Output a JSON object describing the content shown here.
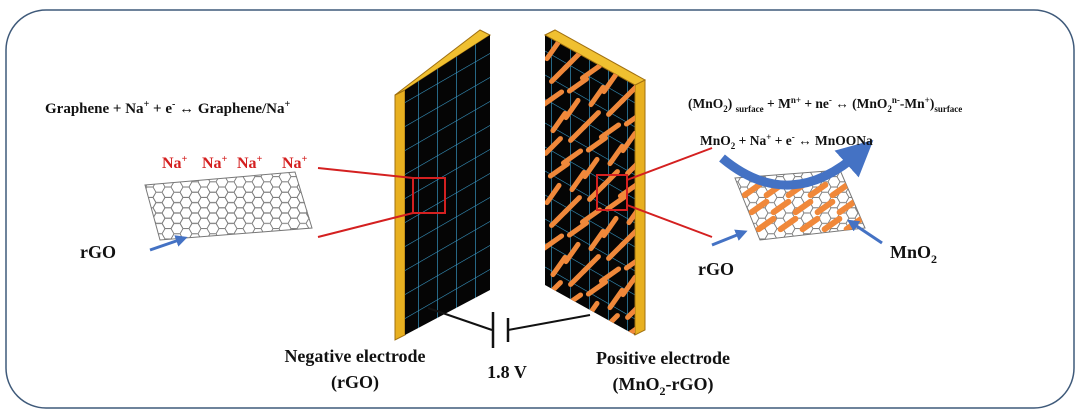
{
  "left": {
    "equation": [
      "Graphene + Na",
      "+",
      " + e",
      "-",
      " ↔ Graphene/Na",
      "+"
    ],
    "ions": [
      [
        "Na",
        "+"
      ],
      [
        "Na",
        "+"
      ],
      [
        "Na",
        "+"
      ],
      [
        "Na",
        "+"
      ]
    ],
    "sheet_label": "rGO"
  },
  "negative": {
    "title": "Negative electrode",
    "subtitle": "(rGO)"
  },
  "voltage": "1.8 V",
  "positive": {
    "title": "Positive electrode",
    "subtitle": [
      "(MnO",
      "2",
      "-rGO)"
    ]
  },
  "right": {
    "equation_1": [
      "(MnO",
      "2",
      ") ",
      "surface",
      " +  M",
      "n+",
      " + ne",
      "-",
      " ↔ (MnO",
      "2",
      "n-",
      "-Mn",
      "+",
      ")",
      "surface"
    ],
    "equation_2": [
      "MnO",
      "2",
      " + Na",
      "+",
      " + e",
      "-",
      " ↔ MnOONa"
    ],
    "sheet_label": "rGO",
    "oxide_label": [
      "MnO",
      "2"
    ]
  }
}
